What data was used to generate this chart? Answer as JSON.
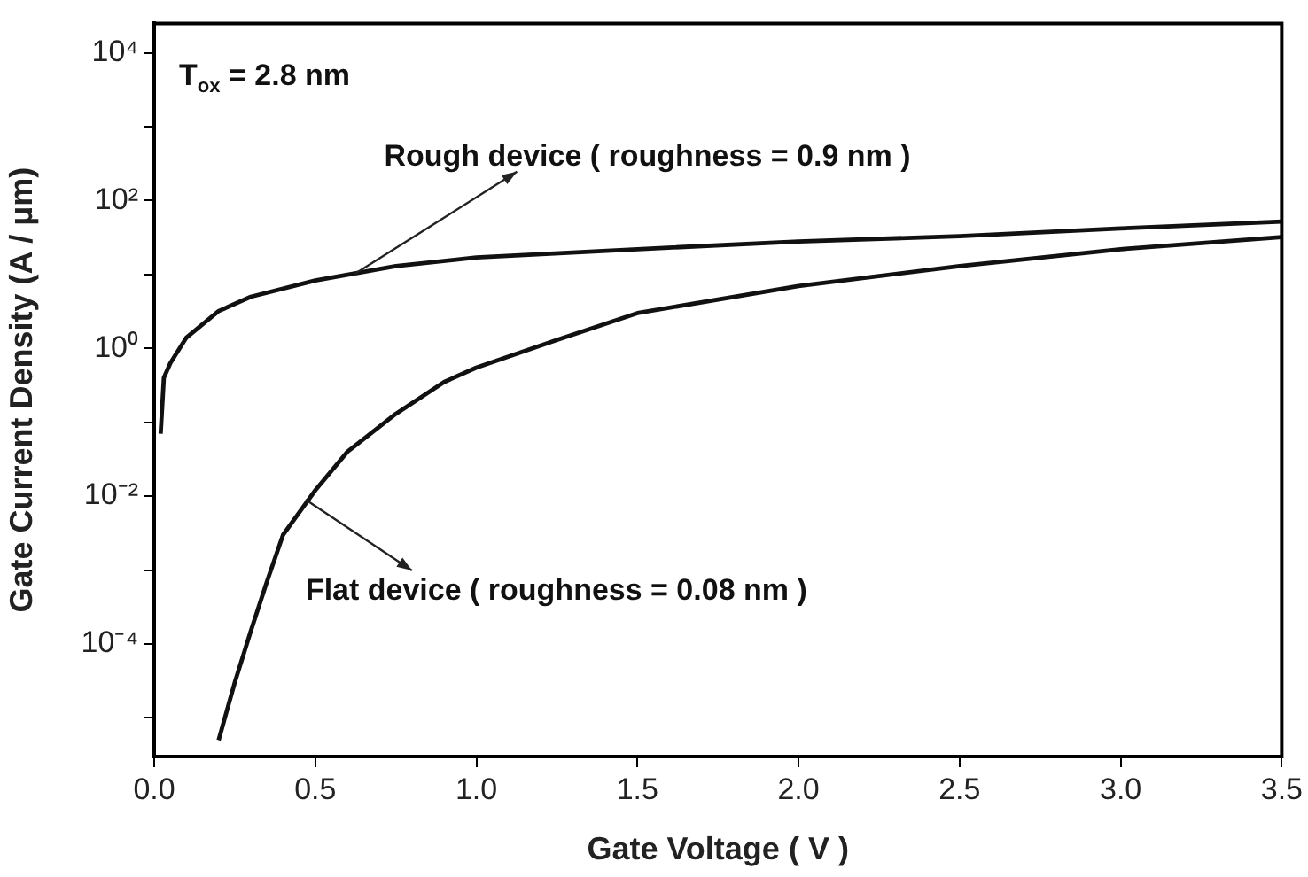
{
  "chart_data": {
    "type": "line",
    "xlabel": "Gate Voltage ( V )",
    "ylabel": "Gate Current Density (A / μm)",
    "log": "y",
    "grid": false,
    "legend": false,
    "marker": "none",
    "line_style": "solid",
    "xlim": [
      0,
      3.5
    ],
    "ylim": [
      3e-06,
      25000
    ],
    "xticks": [
      {
        "value": 0,
        "label": "0.0"
      },
      {
        "value": 0.5,
        "label": "0.5"
      },
      {
        "value": 1,
        "label": "1.0"
      },
      {
        "value": 1.5,
        "label": "1.5"
      },
      {
        "value": 2,
        "label": "2.0"
      },
      {
        "value": 2.5,
        "label": "2.5"
      },
      {
        "value": 3,
        "label": "3.0"
      },
      {
        "value": 3.5,
        "label": "3.5"
      }
    ],
    "yticks": [
      {
        "value": 1e-05,
        "label": null
      },
      {
        "value": 0.0001,
        "label": "10⁻⁴"
      },
      {
        "value": 0.001,
        "label": null
      },
      {
        "value": 0.01,
        "label": "10⁻²"
      },
      {
        "value": 0.1,
        "label": null
      },
      {
        "value": 1,
        "label": "10⁰"
      },
      {
        "value": 10,
        "label": null
      },
      {
        "value": 100,
        "label": "10²"
      },
      {
        "value": 1000,
        "label": null
      },
      {
        "value": 10000,
        "label": "10⁴"
      }
    ],
    "series": [
      {
        "color": "#111111",
        "x": [
          0.02,
          0.03,
          0.05,
          0.1,
          0.2,
          0.3,
          0.5,
          0.75,
          1.0,
          1.5,
          2.0,
          2.5,
          3.0,
          3.5
        ],
        "values": [
          0.07,
          0.4,
          0.63,
          1.4,
          3.2,
          5,
          8.3,
          13,
          17,
          22,
          28,
          33,
          42,
          52
        ]
      },
      {
        "color": "#111111",
        "x": [
          0.2,
          0.25,
          0.3,
          0.35,
          0.4,
          0.45,
          0.5,
          0.6,
          0.75,
          0.9,
          1.0,
          1.25,
          1.5,
          2.0,
          2.5,
          3.0,
          3.5
        ],
        "values": [
          5e-06,
          3e-05,
          0.00015,
          0.0007,
          0.003,
          0.006,
          0.012,
          0.04,
          0.13,
          0.35,
          0.55,
          1.3,
          3,
          7,
          13,
          22,
          32
        ]
      }
    ],
    "annotations": [
      "T$_{ox}$ = 2.8 nm",
      {
        "text": "Rough device ( roughness = 0.9 nm )",
        "x": 0.62,
        "y": 10
      },
      {
        "text": "Flat device ( roughness = 0.08 nm )",
        "x": 0.47,
        "y": 0.009
      }
    ]
  }
}
